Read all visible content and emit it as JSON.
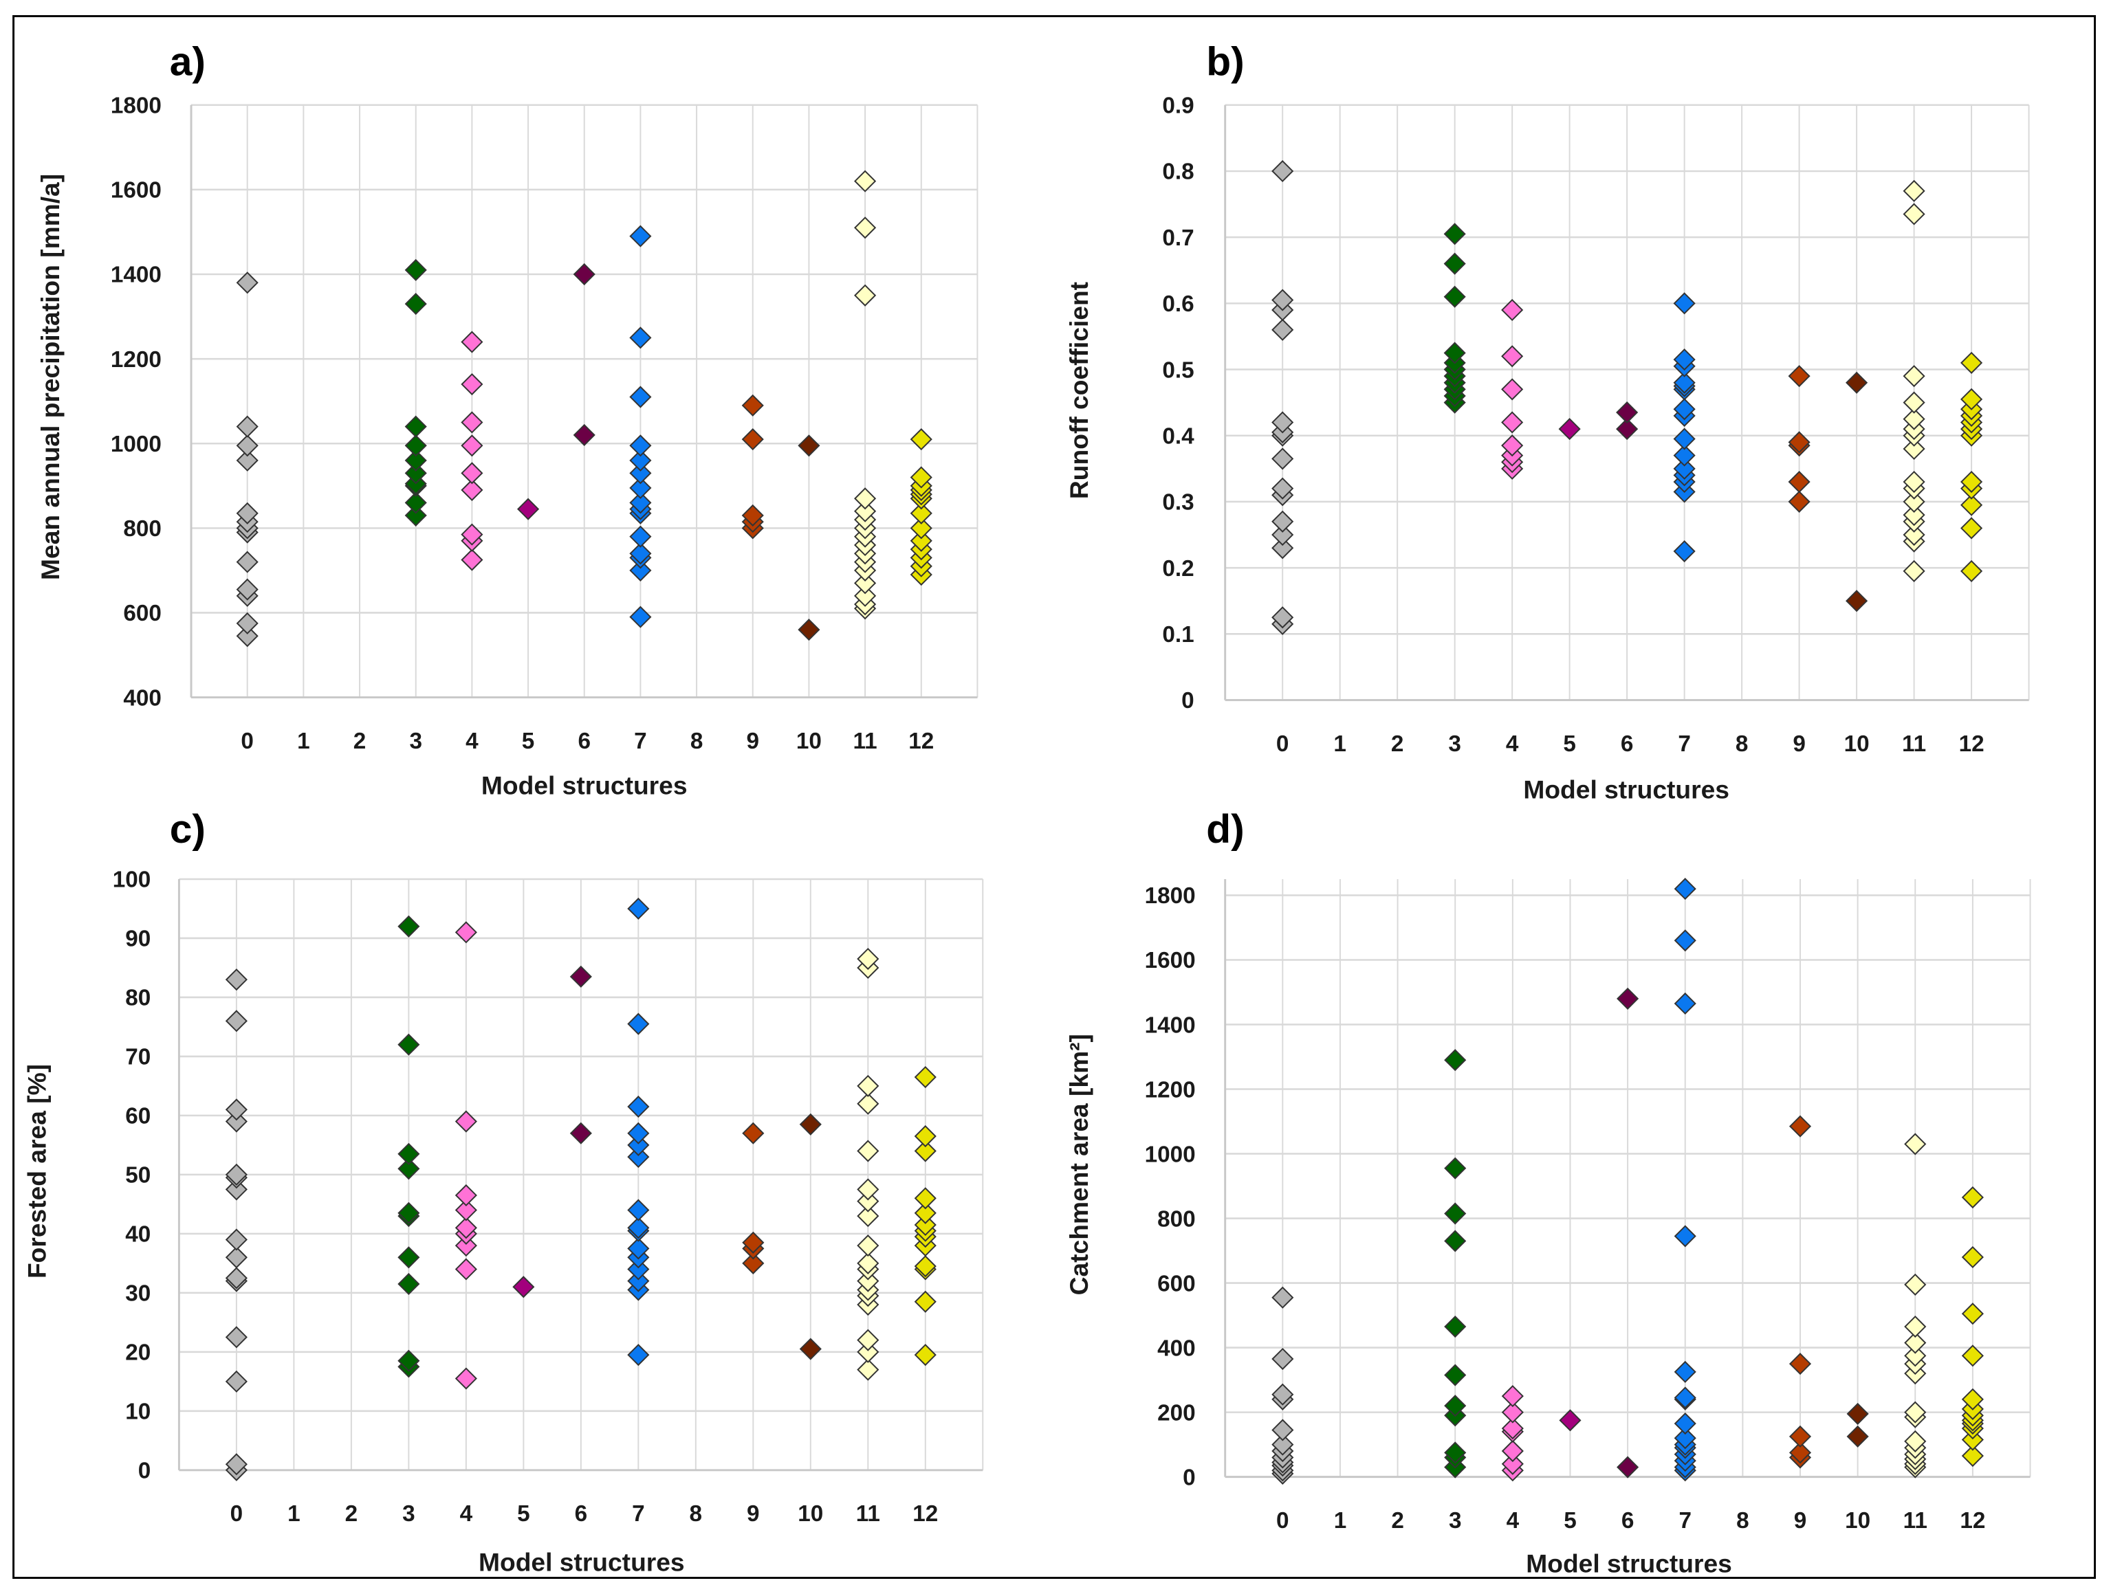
{
  "chart_data": [
    {
      "type": "scatter",
      "panel_label": "a)",
      "xlabel": "Model structures",
      "ylabel": "Mean annual precipitation [mm/a]",
      "x_ticks": [
        "0",
        "1",
        "2",
        "3",
        "4",
        "5",
        "6",
        "7",
        "8",
        "9",
        "10",
        "11",
        "12"
      ],
      "y_ticks": [
        "400",
        "600",
        "800",
        "1000",
        "1200",
        "1400",
        "1600",
        "1800"
      ],
      "ylim": [
        400,
        1800
      ],
      "grid": true,
      "series": [
        {
          "x": 0,
          "values": [
            1380,
            1040,
            995,
            960,
            835,
            815,
            800,
            790,
            720,
            655,
            640,
            575,
            545
          ]
        },
        {
          "x": 3,
          "values": [
            1410,
            1330,
            1040,
            995,
            960,
            930,
            905,
            900,
            860,
            830
          ]
        },
        {
          "x": 4,
          "values": [
            1240,
            1140,
            1050,
            995,
            930,
            890,
            785,
            770,
            725
          ]
        },
        {
          "x": 5,
          "values": [
            845
          ]
        },
        {
          "x": 6,
          "values": [
            1400,
            1020
          ]
        },
        {
          "x": 7,
          "values": [
            1490,
            1250,
            1110,
            995,
            960,
            930,
            895,
            860,
            845,
            835,
            780,
            740,
            730,
            700,
            590
          ]
        },
        {
          "x": 9,
          "values": [
            1090,
            1010,
            830,
            815,
            800
          ]
        },
        {
          "x": 10,
          "values": [
            995,
            560
          ]
        },
        {
          "x": 11,
          "values": [
            1620,
            1510,
            1350,
            870,
            840,
            820,
            800,
            780,
            760,
            740,
            720,
            700,
            670,
            640,
            620,
            610
          ]
        },
        {
          "x": 12,
          "values": [
            1010,
            920,
            900,
            890,
            880,
            870,
            835,
            800,
            770,
            750,
            730,
            710,
            690
          ]
        }
      ]
    },
    {
      "type": "scatter",
      "panel_label": "b)",
      "xlabel": "Model structures",
      "ylabel": "Runoff coefficient",
      "x_ticks": [
        "0",
        "1",
        "2",
        "3",
        "4",
        "5",
        "6",
        "7",
        "8",
        "9",
        "10",
        "11",
        "12"
      ],
      "y_ticks": [
        "0",
        "0.1",
        "0.2",
        "0.3",
        "0.4",
        "0.5",
        "0.6",
        "0.7",
        "0.8",
        "0.9"
      ],
      "ylim": [
        0,
        0.9
      ],
      "grid": true,
      "series": [
        {
          "x": 0,
          "values": [
            0.8,
            0.605,
            0.59,
            0.56,
            0.42,
            0.405,
            0.4,
            0.365,
            0.32,
            0.31,
            0.27,
            0.25,
            0.23,
            0.125,
            0.115
          ]
        },
        {
          "x": 3,
          "values": [
            0.705,
            0.66,
            0.61,
            0.525,
            0.51,
            0.5,
            0.49,
            0.48,
            0.47,
            0.46,
            0.45
          ]
        },
        {
          "x": 4,
          "values": [
            0.59,
            0.52,
            0.47,
            0.42,
            0.385,
            0.37,
            0.36,
            0.35
          ]
        },
        {
          "x": 5,
          "values": [
            0.41
          ]
        },
        {
          "x": 6,
          "values": [
            0.435,
            0.41
          ]
        },
        {
          "x": 7,
          "values": [
            0.6,
            0.515,
            0.505,
            0.48,
            0.475,
            0.47,
            0.44,
            0.43,
            0.395,
            0.37,
            0.35,
            0.34,
            0.33,
            0.315,
            0.225
          ]
        },
        {
          "x": 9,
          "values": [
            0.49,
            0.39,
            0.385,
            0.33,
            0.3
          ]
        },
        {
          "x": 10,
          "values": [
            0.48,
            0.15
          ]
        },
        {
          "x": 11,
          "values": [
            0.77,
            0.735,
            0.49,
            0.45,
            0.425,
            0.41,
            0.4,
            0.38,
            0.33,
            0.32,
            0.3,
            0.28,
            0.27,
            0.25,
            0.24,
            0.195
          ]
        },
        {
          "x": 12,
          "values": [
            0.51,
            0.455,
            0.44,
            0.43,
            0.42,
            0.41,
            0.4,
            0.33,
            0.32,
            0.295,
            0.26,
            0.195
          ]
        }
      ]
    },
    {
      "type": "scatter",
      "panel_label": "c)",
      "xlabel": "Model structures",
      "ylabel": "Forested area [%]",
      "x_ticks": [
        "0",
        "1",
        "2",
        "3",
        "4",
        "5",
        "6",
        "7",
        "8",
        "9",
        "10",
        "11",
        "12"
      ],
      "y_ticks": [
        "0",
        "10",
        "20",
        "30",
        "40",
        "50",
        "60",
        "70",
        "80",
        "90",
        "100"
      ],
      "ylim": [
        0,
        100
      ],
      "grid": true,
      "series": [
        {
          "x": 0,
          "values": [
            83,
            76,
            61,
            59,
            50,
            49.5,
            47.5,
            39,
            36,
            32.5,
            32,
            22.5,
            15,
            1,
            0
          ]
        },
        {
          "x": 3,
          "values": [
            92,
            72,
            53.5,
            51,
            43.5,
            43,
            36,
            31.5,
            18.5,
            17.5
          ]
        },
        {
          "x": 4,
          "values": [
            91,
            59,
            46.5,
            44,
            41,
            40,
            38,
            34,
            15.5
          ]
        },
        {
          "x": 5,
          "values": [
            31
          ]
        },
        {
          "x": 6,
          "values": [
            83.5,
            57
          ]
        },
        {
          "x": 7,
          "values": [
            95,
            75.5,
            61.5,
            57,
            55,
            53,
            44,
            41,
            40.5,
            37.5,
            36,
            34,
            32,
            30.5,
            19.5
          ]
        },
        {
          "x": 9,
          "values": [
            57,
            38.5,
            37.5,
            35
          ]
        },
        {
          "x": 10,
          "values": [
            58.5,
            20.5
          ]
        },
        {
          "x": 11,
          "values": [
            86.5,
            85,
            65,
            62,
            54,
            47.5,
            45.5,
            43,
            38,
            35,
            34,
            32,
            30.5,
            29.5,
            28,
            22,
            20,
            17
          ]
        },
        {
          "x": 12,
          "values": [
            66.5,
            56.5,
            54,
            46,
            43.5,
            41.5,
            40.5,
            39.5,
            38,
            34.5,
            34,
            28.5,
            19.5
          ]
        }
      ]
    },
    {
      "type": "scatter",
      "panel_label": "d)",
      "xlabel": "Model structures",
      "ylabel": "Catchment area [km²]",
      "x_ticks": [
        "0",
        "1",
        "2",
        "3",
        "4",
        "5",
        "6",
        "7",
        "8",
        "9",
        "10",
        "11",
        "12"
      ],
      "y_ticks": [
        "0",
        "200",
        "400",
        "600",
        "800",
        "1000",
        "1200",
        "1400",
        "1600",
        "1800"
      ],
      "ylim": [
        0,
        1850
      ],
      "grid": true,
      "series": [
        {
          "x": 0,
          "values": [
            555,
            365,
            255,
            240,
            145,
            100,
            80,
            60,
            45,
            35,
            20,
            10
          ]
        },
        {
          "x": 3,
          "values": [
            1290,
            955,
            815,
            730,
            465,
            315,
            220,
            190,
            75,
            60,
            30
          ]
        },
        {
          "x": 4,
          "values": [
            250,
            200,
            150,
            140,
            80,
            40,
            20
          ]
        },
        {
          "x": 5,
          "values": [
            175
          ]
        },
        {
          "x": 6,
          "values": [
            1480,
            30
          ]
        },
        {
          "x": 7,
          "values": [
            1820,
            1660,
            1465,
            745,
            325,
            245,
            240,
            165,
            120,
            100,
            90,
            70,
            50,
            30,
            20
          ]
        },
        {
          "x": 9,
          "values": [
            1085,
            350,
            125,
            75,
            60
          ]
        },
        {
          "x": 10,
          "values": [
            195,
            125
          ]
        },
        {
          "x": 11,
          "values": [
            1030,
            595,
            465,
            415,
            375,
            350,
            320,
            200,
            185,
            110,
            90,
            70,
            55,
            40,
            30
          ]
        },
        {
          "x": 12,
          "values": [
            865,
            680,
            505,
            375,
            240,
            210,
            190,
            175,
            165,
            150,
            115,
            65
          ]
        }
      ]
    }
  ],
  "colors": {
    "0": "#b4b4b4",
    "3": "#006400",
    "4": "#ff72d6",
    "5": "#a3007d",
    "6": "#6b0045",
    "7": "#0a78f0",
    "9": "#b43c00",
    "10": "#6e2200",
    "11": "#ffffc4",
    "12": "#e8e200",
    "grid": "#d9d9d9",
    "marker_edge": "#333333"
  }
}
